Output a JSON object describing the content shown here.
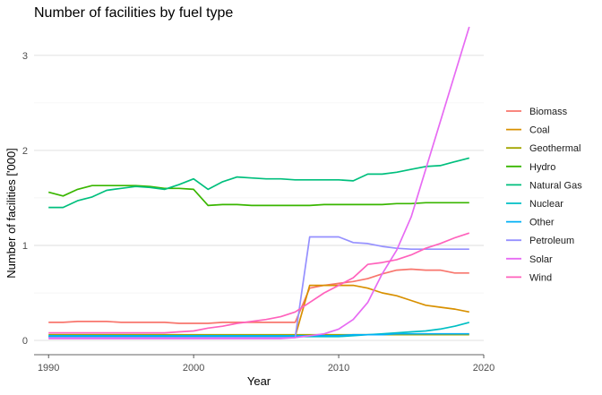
{
  "chart_data": {
    "type": "line",
    "title": "Number of facilities by fuel type",
    "xlabel": "Year",
    "ylabel": "Number of facilities ['000]",
    "xlim": [
      1989,
      2020
    ],
    "ylim": [
      -0.15,
      3.3
    ],
    "x_ticks": [
      1990,
      2000,
      2010,
      2020
    ],
    "y_ticks": [
      0,
      1,
      2,
      3
    ],
    "grid": true,
    "legend_position": "right",
    "x": [
      1990,
      1991,
      1992,
      1993,
      1994,
      1995,
      1996,
      1997,
      1998,
      1999,
      2000,
      2001,
      2002,
      2003,
      2004,
      2005,
      2006,
      2007,
      2008,
      2009,
      2010,
      2011,
      2012,
      2013,
      2014,
      2015,
      2016,
      2017,
      2018,
      2019
    ],
    "series": [
      {
        "name": "Biomass",
        "color": "#F8766D",
        "values": [
          0.19,
          0.19,
          0.2,
          0.2,
          0.2,
          0.19,
          0.19,
          0.19,
          0.19,
          0.18,
          0.18,
          0.18,
          0.19,
          0.19,
          0.19,
          0.19,
          0.19,
          0.19,
          0.55,
          0.58,
          0.6,
          0.62,
          0.65,
          0.7,
          0.74,
          0.75,
          0.74,
          0.74,
          0.71,
          0.71
        ]
      },
      {
        "name": "Coal",
        "color": "#D89000",
        "values": [
          0.04,
          0.04,
          0.04,
          0.04,
          0.04,
          0.04,
          0.04,
          0.04,
          0.04,
          0.04,
          0.04,
          0.04,
          0.04,
          0.04,
          0.04,
          0.04,
          0.04,
          0.04,
          0.58,
          0.58,
          0.58,
          0.58,
          0.55,
          0.5,
          0.47,
          0.42,
          0.37,
          0.35,
          0.33,
          0.3
        ]
      },
      {
        "name": "Geothermal",
        "color": "#A3A500",
        "values": [
          0.06,
          0.06,
          0.06,
          0.06,
          0.06,
          0.06,
          0.06,
          0.06,
          0.06,
          0.06,
          0.06,
          0.06,
          0.06,
          0.06,
          0.06,
          0.06,
          0.06,
          0.06,
          0.06,
          0.06,
          0.06,
          0.06,
          0.06,
          0.06,
          0.06,
          0.06,
          0.06,
          0.06,
          0.06,
          0.06
        ]
      },
      {
        "name": "Hydro",
        "color": "#39B600",
        "values": [
          1.56,
          1.52,
          1.59,
          1.63,
          1.63,
          1.63,
          1.63,
          1.62,
          1.6,
          1.6,
          1.59,
          1.42,
          1.43,
          1.43,
          1.42,
          1.42,
          1.42,
          1.42,
          1.42,
          1.43,
          1.43,
          1.43,
          1.43,
          1.43,
          1.44,
          1.44,
          1.45,
          1.45,
          1.45,
          1.45
        ]
      },
      {
        "name": "Natural Gas",
        "color": "#00BF7D",
        "values": [
          1.4,
          1.4,
          1.47,
          1.51,
          1.58,
          1.6,
          1.62,
          1.61,
          1.59,
          1.64,
          1.7,
          1.59,
          1.67,
          1.72,
          1.71,
          1.7,
          1.7,
          1.69,
          1.69,
          1.69,
          1.69,
          1.68,
          1.75,
          1.75,
          1.77,
          1.8,
          1.83,
          1.84,
          1.88,
          1.92
        ]
      },
      {
        "name": "Nuclear",
        "color": "#00BFC4",
        "values": [
          0.04,
          0.04,
          0.04,
          0.04,
          0.04,
          0.04,
          0.04,
          0.04,
          0.04,
          0.04,
          0.04,
          0.04,
          0.04,
          0.04,
          0.04,
          0.04,
          0.04,
          0.04,
          0.04,
          0.04,
          0.04,
          0.05,
          0.06,
          0.07,
          0.08,
          0.09,
          0.1,
          0.12,
          0.15,
          0.19
        ]
      },
      {
        "name": "Other",
        "color": "#00B0F6",
        "values": [
          0.05,
          0.05,
          0.05,
          0.05,
          0.05,
          0.05,
          0.05,
          0.05,
          0.05,
          0.05,
          0.05,
          0.05,
          0.05,
          0.05,
          0.05,
          0.05,
          0.05,
          0.05,
          0.05,
          0.05,
          0.05,
          0.06,
          0.06,
          0.06,
          0.07,
          0.07,
          0.07,
          0.07,
          0.07,
          0.07
        ]
      },
      {
        "name": "Petroleum",
        "color": "#9590FF",
        "values": [
          0.03,
          0.03,
          0.03,
          0.03,
          0.03,
          0.03,
          0.03,
          0.03,
          0.03,
          0.03,
          0.03,
          0.03,
          0.03,
          0.03,
          0.03,
          0.03,
          0.03,
          0.03,
          1.09,
          1.09,
          1.09,
          1.03,
          1.02,
          0.99,
          0.97,
          0.96,
          0.96,
          0.96,
          0.96,
          0.96
        ]
      },
      {
        "name": "Solar",
        "color": "#E76BF3",
        "values": [
          0.02,
          0.02,
          0.02,
          0.02,
          0.02,
          0.02,
          0.02,
          0.02,
          0.02,
          0.02,
          0.02,
          0.02,
          0.02,
          0.02,
          0.02,
          0.02,
          0.02,
          0.03,
          0.05,
          0.07,
          0.12,
          0.22,
          0.4,
          0.7,
          0.95,
          1.3,
          1.8,
          2.3,
          2.8,
          3.3
        ]
      },
      {
        "name": "Wind",
        "color": "#FF62BC",
        "values": [
          0.08,
          0.08,
          0.08,
          0.08,
          0.08,
          0.08,
          0.08,
          0.08,
          0.08,
          0.09,
          0.1,
          0.13,
          0.15,
          0.18,
          0.2,
          0.22,
          0.25,
          0.3,
          0.4,
          0.5,
          0.58,
          0.66,
          0.8,
          0.82,
          0.85,
          0.9,
          0.97,
          1.02,
          1.08,
          1.13
        ]
      }
    ]
  }
}
